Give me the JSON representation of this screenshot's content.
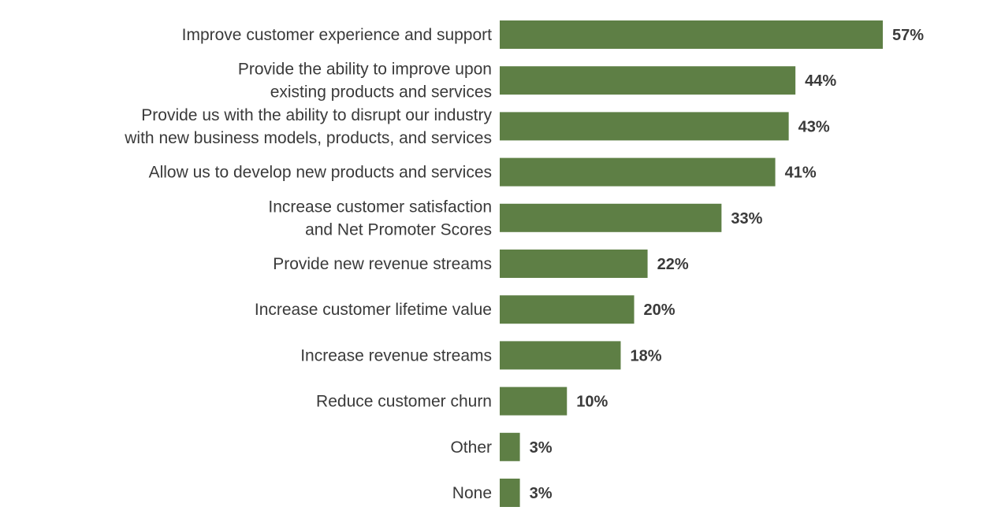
{
  "chart_data": {
    "type": "bar",
    "orientation": "horizontal",
    "title": "",
    "xlabel": "",
    "ylabel": "",
    "xlim": [
      0,
      60
    ],
    "grid": false,
    "value_suffix": "%",
    "bar_color": "#5e7f45",
    "text_color": "#3a3a3a",
    "categories": [
      [
        "Improve customer experience and support"
      ],
      [
        "Provide the ability to improve upon",
        "existing products and services"
      ],
      [
        "Provide us with the ability to disrupt our industry",
        "with new business models, products, and services"
      ],
      [
        "Allow us to develop new products and services"
      ],
      [
        "Increase customer satisfaction",
        "and Net Promoter Scores"
      ],
      [
        "Provide new revenue streams"
      ],
      [
        "Increase customer lifetime value"
      ],
      [
        "Increase revenue streams"
      ],
      [
        "Reduce customer churn"
      ],
      [
        "Other"
      ],
      [
        "None"
      ]
    ],
    "values": [
      57,
      44,
      43,
      41,
      33,
      22,
      20,
      18,
      10,
      3,
      3
    ]
  }
}
